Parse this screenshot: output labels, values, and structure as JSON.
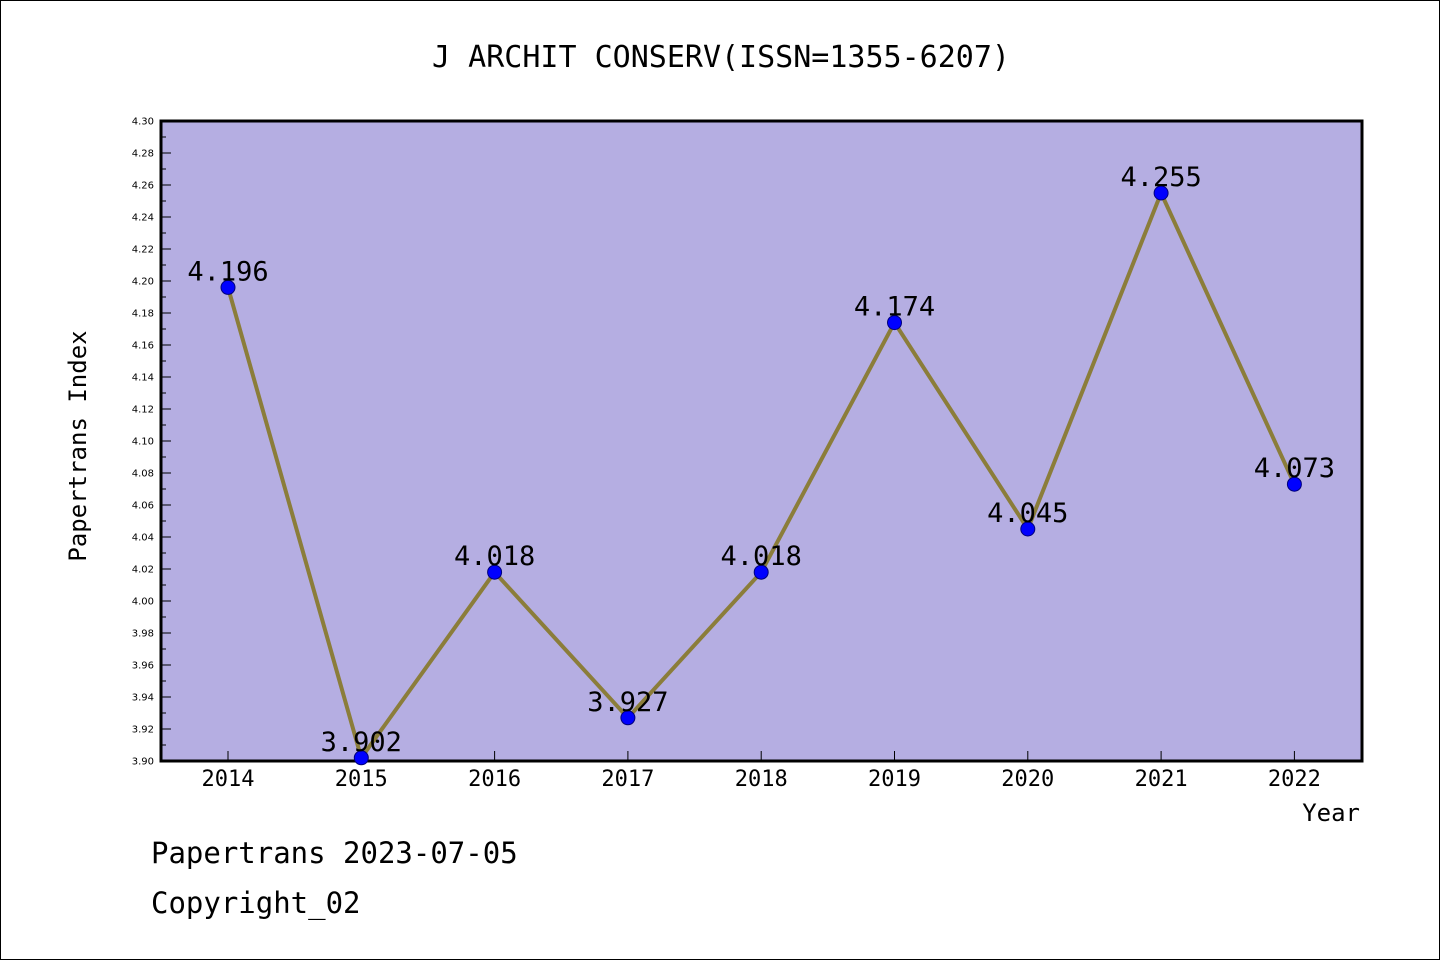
{
  "chart_data": {
    "type": "line",
    "title": "J ARCHIT CONSERV(ISSN=1355-6207)",
    "xlabel": "Year",
    "ylabel": "Papertrans Index",
    "categories": [
      "2014",
      "2015",
      "2016",
      "2017",
      "2018",
      "2019",
      "2020",
      "2021",
      "2022"
    ],
    "series": [
      {
        "values": [
          4.196,
          3.902,
          4.018,
          3.927,
          4.018,
          4.174,
          4.045,
          4.255,
          4.073
        ]
      }
    ],
    "data_labels": [
      "4.196",
      "3.902",
      "4.018",
      "3.927",
      "4.018",
      "4.174",
      "4.045",
      "4.255",
      "4.073"
    ],
    "ylim": [
      3.9,
      4.3
    ],
    "y_ticks": [
      "3.90",
      "3.92",
      "3.94",
      "3.96",
      "3.98",
      "4.00",
      "4.02",
      "4.04",
      "4.06",
      "4.08",
      "4.10",
      "4.12",
      "4.14",
      "4.16",
      "4.18",
      "4.20",
      "4.22",
      "4.24",
      "4.26",
      "4.28",
      "4.30"
    ],
    "grid": false,
    "colors": {
      "plot_background": "#b5aee2",
      "line": "#8b7d3a",
      "marker": "#0000ff"
    }
  },
  "footer": {
    "date_line": "Papertrans 2023-07-05",
    "copyright_line": "Copyright_02"
  }
}
